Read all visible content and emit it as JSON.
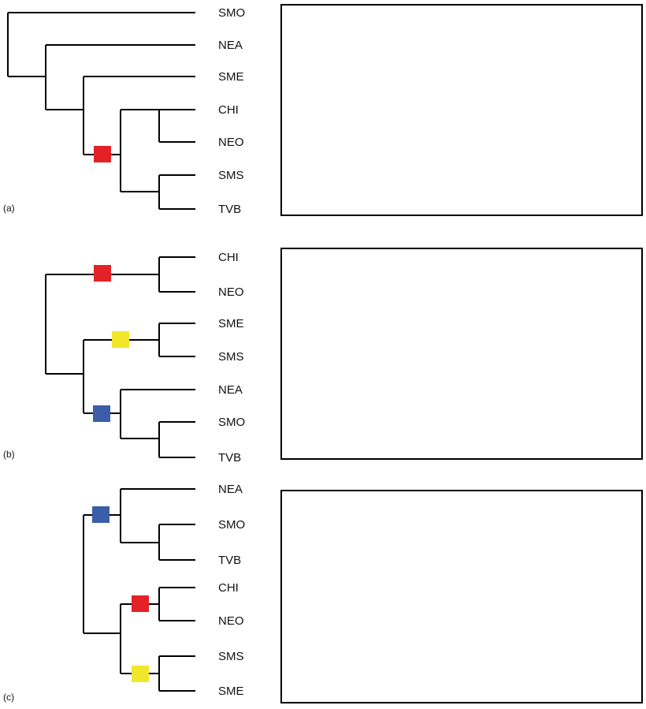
{
  "colors": {
    "red": "#e32228",
    "blue": "#3a5ea8",
    "yellow": "#f2e62a",
    "line": "#000000"
  },
  "panels": [
    {
      "label": "(a)",
      "taxa": [
        "SMO",
        "NEA",
        "SME",
        "CHI",
        "NEO",
        "SMS",
        "TVB"
      ],
      "markers": [
        "red"
      ],
      "map_regions": [
        "red"
      ]
    },
    {
      "label": "(b)",
      "taxa": [
        "CHI",
        "NEO",
        "SME",
        "SMS",
        "NEA",
        "SMO",
        "TVB"
      ],
      "markers": [
        "red",
        "yellow",
        "blue"
      ],
      "map_regions": [
        "blue",
        "red",
        "yellow"
      ]
    },
    {
      "label": "(c)",
      "taxa": [
        "NEA",
        "SMO",
        "TVB",
        "CHI",
        "NEO",
        "SMS",
        "SME"
      ],
      "markers": [
        "blue",
        "red",
        "yellow"
      ],
      "map_regions": [
        "blue",
        "red",
        "yellow"
      ]
    }
  ]
}
